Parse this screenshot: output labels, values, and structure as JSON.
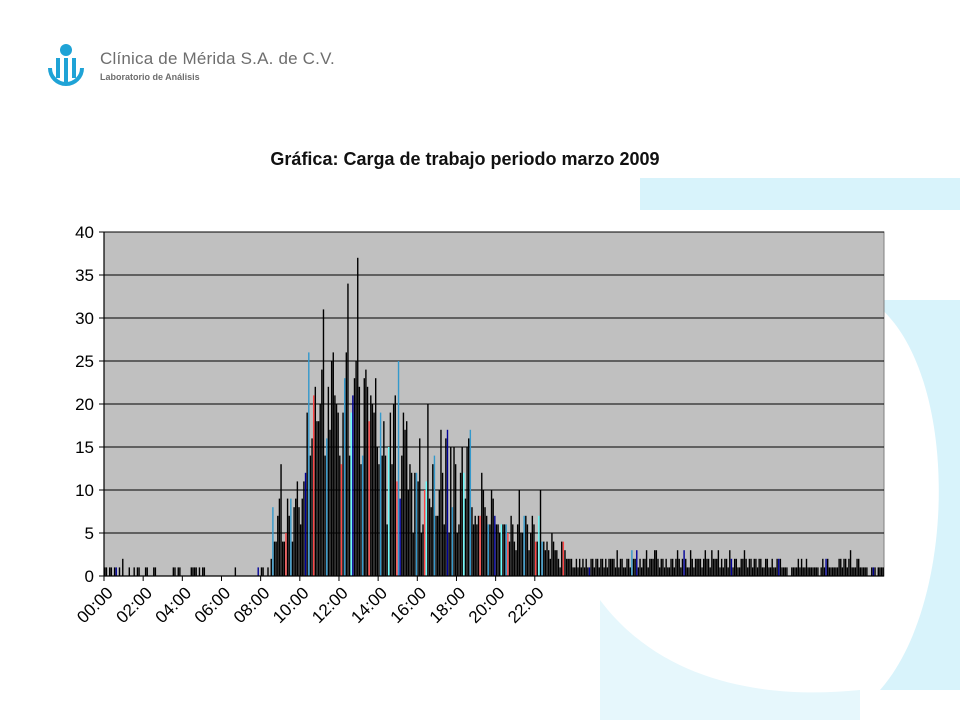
{
  "header": {
    "company": "Clínica de Mérida S.A. de C.V.",
    "department": "Laboratorio de Análisis"
  },
  "logo_icon": "clinic-logo-icon",
  "colors": {
    "brand": "#1fa3d6",
    "decor": "#d8f3fb",
    "plot_bg": "#c0c0c0",
    "bar": "#000000",
    "bar_accents": [
      "#3399cc",
      "#ff4444",
      "#66ffff",
      "#000099"
    ],
    "grid": "#000000"
  },
  "chart_data": {
    "type": "bar",
    "title": "Gráfica: Carga de trabajo periodo marzo 2009",
    "xlabel": "",
    "ylabel": "",
    "ylim": [
      0,
      40
    ],
    "yticks": [
      "0",
      "5",
      "10",
      "15",
      "20",
      "25",
      "30",
      "35",
      "40"
    ],
    "xticks": [
      "00:00",
      "02:00",
      "04:00",
      "06:00",
      "08:00",
      "10:00",
      "12:00",
      "14:00",
      "16:00",
      "18:00",
      "20:00",
      "22:00"
    ],
    "grid": "horizontal",
    "legend": "none",
    "bin_minutes": 5,
    "values": [
      1,
      1,
      0,
      1,
      1,
      0,
      1,
      1,
      0,
      1,
      0,
      2,
      0,
      0,
      0,
      1,
      0,
      0,
      1,
      0,
      1,
      1,
      0,
      0,
      0,
      1,
      1,
      0,
      0,
      0,
      1,
      1,
      0,
      0,
      0,
      0,
      0,
      0,
      0,
      0,
      0,
      0,
      1,
      1,
      0,
      1,
      1,
      0,
      0,
      0,
      0,
      0,
      0,
      1,
      1,
      1,
      1,
      0,
      1,
      0,
      1,
      1,
      0,
      0,
      0,
      0,
      0,
      0,
      0,
      0,
      0,
      0,
      0,
      0,
      0,
      0,
      0,
      0,
      0,
      0,
      1,
      0,
      0,
      0,
      0,
      0,
      0,
      0,
      0,
      0,
      0,
      0,
      0,
      0,
      1,
      0,
      1,
      1,
      0,
      0,
      1,
      0,
      2,
      8,
      4,
      4,
      7,
      9,
      13,
      4,
      4,
      5,
      9,
      7,
      9,
      4,
      8,
      9,
      11,
      8,
      6,
      9,
      11,
      12,
      19,
      26,
      14,
      16,
      21,
      22,
      18,
      18,
      20,
      24,
      31,
      14,
      16,
      22,
      17,
      25,
      26,
      21,
      20,
      19,
      14,
      13,
      19,
      23,
      26,
      34,
      14,
      19,
      21,
      23,
      25,
      37,
      22,
      13,
      14,
      23,
      24,
      22,
      18,
      21,
      20,
      19,
      23,
      15,
      13,
      19,
      14,
      18,
      14,
      6,
      15,
      19,
      13,
      20,
      21,
      11,
      25,
      9,
      14,
      19,
      17,
      18,
      10,
      13,
      12,
      5,
      12,
      12,
      11,
      16,
      5,
      6,
      10,
      11,
      20,
      9,
      8,
      13,
      14,
      7,
      7,
      10,
      17,
      12,
      6,
      16,
      17,
      5,
      15,
      8,
      15,
      13,
      5,
      6,
      12,
      15,
      12,
      9,
      15,
      16,
      17,
      8,
      6,
      7,
      6,
      7,
      7,
      12,
      10,
      8,
      7,
      6,
      6,
      10,
      9,
      7,
      6,
      6,
      5,
      6,
      6,
      6,
      6,
      5,
      4,
      7,
      6,
      4,
      3,
      6,
      10,
      5,
      5,
      7,
      7,
      6,
      3,
      5,
      7,
      6,
      4,
      4,
      7,
      10,
      4,
      4,
      3,
      4,
      3,
      2,
      5,
      4,
      3,
      3,
      2,
      1,
      4,
      4,
      3,
      2,
      2,
      2,
      2,
      1,
      1,
      2,
      1,
      2,
      1,
      2,
      1,
      2,
      1,
      1,
      2,
      2,
      1,
      2,
      2,
      1,
      2,
      2,
      1,
      2,
      1,
      2,
      2,
      2,
      2,
      1,
      3,
      1,
      2,
      2,
      1,
      1,
      2,
      2,
      1,
      3,
      2,
      2,
      3,
      1,
      2,
      1,
      2,
      2,
      3,
      1,
      2,
      2,
      2,
      3,
      3,
      2,
      1,
      2,
      2,
      1,
      2,
      1,
      1,
      2,
      2,
      1,
      2,
      3,
      2,
      1,
      2,
      3,
      2,
      1,
      1,
      3,
      2,
      1,
      2,
      2,
      2,
      2,
      1,
      2,
      3,
      2,
      2,
      1,
      3,
      2,
      2,
      2,
      3,
      1,
      2,
      1,
      2,
      2,
      1,
      3,
      2,
      1,
      2,
      2,
      1,
      1,
      2,
      2,
      3,
      2,
      1,
      2,
      2,
      1,
      2,
      2,
      1,
      2,
      2,
      1,
      1,
      2,
      2,
      1,
      1,
      2,
      1,
      1,
      2,
      2,
      2,
      1,
      1,
      1,
      1,
      0,
      0,
      1,
      1,
      1,
      1,
      2,
      1,
      2,
      1,
      1,
      2,
      1,
      1,
      1,
      1,
      1,
      1,
      1,
      0,
      1,
      2,
      1,
      2,
      2,
      1,
      1,
      1,
      1,
      1,
      1,
      2,
      2,
      1,
      2,
      2,
      1,
      2,
      3,
      1,
      1,
      1,
      2,
      2,
      1,
      1,
      1,
      1,
      1,
      0,
      0,
      1,
      1,
      1,
      0,
      1,
      1,
      1,
      1
    ]
  }
}
